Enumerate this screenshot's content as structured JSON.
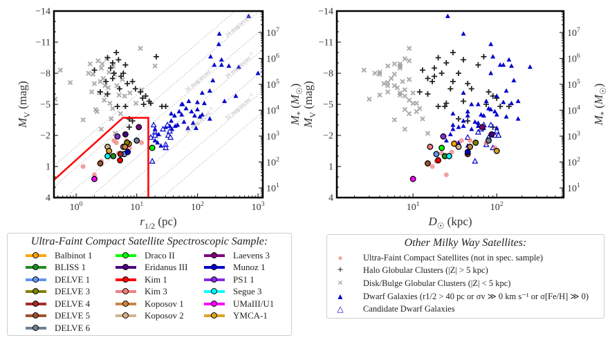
{
  "chart_data": [
    {
      "type": "scatter",
      "panel": "left",
      "xlabel": "r_1/2 (pc)",
      "ylabel": "M_V (mag)",
      "ylabel_right": "M_* (M_sun)",
      "xscale": "log",
      "xlim": [
        0.43,
        1200
      ],
      "ylim": [
        4,
        -14
      ],
      "xticks": [
        "10^0",
        "10^1",
        "10^2",
        "10^3"
      ],
      "yticks": [
        "-14",
        "-11",
        "-8",
        "-5",
        "-2",
        "1",
        "4"
      ],
      "yticks_right": [
        "10^1",
        "10^2",
        "10^3",
        "10^4",
        "10^5",
        "10^6",
        "10^7"
      ],
      "sb_lines": [
        {
          "label": "24 mag/arcsec^-2",
          "offset": 1.1
        },
        {
          "label": "26 mag/arcsec^-2",
          "offset": 3.1
        },
        {
          "label": "28 mag/arcsec^-2",
          "offset": 5.1
        },
        {
          "label": "30 mag/arcsec^-2",
          "offset": 7.1
        },
        {
          "label": "32 mag/arcsec^-2",
          "offset": 9.1
        },
        {
          "label": "",
          "offset": -0.9
        },
        {
          "label": "",
          "offset": 11.1
        }
      ],
      "selection_box": [
        [
          0.43,
          2.3
        ],
        [
          5.9,
          -3.7
        ],
        [
          15.5,
          -3.7
        ],
        [
          15.5,
          4
        ]
      ]
    },
    {
      "type": "scatter",
      "panel": "right",
      "xlabel": "D_sun (kpc)",
      "ylabel": "M_V (mag)",
      "ylabel_right": "M_* (M_sun)",
      "xscale": "log",
      "xlim": [
        1.23,
        630
      ],
      "ylim": [
        4,
        -14
      ],
      "xticks": [
        "10^1",
        "10^2"
      ],
      "yticks": [
        "-14",
        "-11",
        "-8",
        "-5",
        "-2",
        "1",
        "4"
      ],
      "yticks_right": [
        "10^1",
        "10^2",
        "10^3",
        "10^4",
        "10^5",
        "10^6",
        "10^7"
      ]
    }
  ],
  "populations": {
    "fields": [
      "r_half_pc",
      "M_V",
      "D_kpc"
    ],
    "halo_gc": [
      [
        3.3,
        -9.5,
        20
      ],
      [
        4,
        -9,
        25
      ],
      [
        4.6,
        -10,
        30
      ],
      [
        5,
        -9.3,
        40
      ],
      [
        3.7,
        -8.5,
        18
      ],
      [
        4.2,
        -8,
        22
      ],
      [
        6.5,
        -8.8,
        60
      ],
      [
        6,
        -8,
        35
      ],
      [
        7,
        -7,
        45
      ],
      [
        8.5,
        -7.2,
        30
      ],
      [
        9.5,
        -6.5,
        28
      ],
      [
        11.5,
        -6.2,
        80
      ],
      [
        12.5,
        -5.6,
        100
      ],
      [
        14,
        -5.8,
        90
      ],
      [
        16,
        -5.3,
        40
      ],
      [
        17,
        -5.1,
        25
      ],
      [
        21,
        -9.6,
        70
      ],
      [
        26,
        -4.8,
        110
      ],
      [
        30,
        -4.8,
        140
      ],
      [
        3.3,
        -6,
        15
      ],
      [
        4.8,
        -4.8,
        20
      ],
      [
        6.5,
        -4.8,
        24
      ],
      [
        7.5,
        -3.6,
        35
      ],
      [
        8.5,
        -3.4,
        45
      ],
      [
        5.5,
        -7.7,
        18
      ],
      [
        2.5,
        -6.2,
        12
      ],
      [
        7.5,
        -2.8,
        90
      ],
      [
        4,
        -7.5,
        15
      ],
      [
        3.1,
        -7.2,
        17
      ],
      [
        5.2,
        -6.5,
        50
      ],
      [
        13,
        -5,
        75
      ],
      [
        2,
        -8.3,
        13
      ]
    ],
    "disk_gc": [
      [
        0.45,
        -5.5,
        3
      ],
      [
        0.55,
        -8.3,
        2.6
      ],
      [
        0.8,
        -7.1,
        5
      ],
      [
        1.3,
        -3.5,
        6
      ],
      [
        1.7,
        -8.9,
        7
      ],
      [
        1.9,
        -7.9,
        4
      ],
      [
        2.1,
        -4.5,
        8
      ],
      [
        2.3,
        -9.2,
        9
      ],
      [
        2.6,
        -8.5,
        7
      ],
      [
        2.8,
        -7.5,
        5.5
      ],
      [
        3,
        -6.8,
        6
      ],
      [
        3.2,
        -9.4,
        8
      ],
      [
        3.5,
        -8.1,
        4
      ],
      [
        2.4,
        -6.1,
        7
      ],
      [
        2.9,
        -5.4,
        9
      ],
      [
        2.2,
        -4.3,
        11
      ],
      [
        3.6,
        -5.1,
        10
      ],
      [
        4,
        -4.6,
        12
      ],
      [
        4.3,
        -7.9,
        6
      ],
      [
        4.7,
        -6.8,
        5
      ],
      [
        5.1,
        -5.9,
        7
      ],
      [
        5.4,
        -4.1,
        9
      ],
      [
        3.8,
        -3.6,
        13
      ],
      [
        2.6,
        -2.6,
        8
      ],
      [
        4.4,
        -2.2,
        15
      ],
      [
        6.3,
        -5.8,
        8
      ],
      [
        7.7,
        -6.1,
        10
      ],
      [
        9.7,
        -5.1,
        11
      ],
      [
        11.5,
        -10.4,
        9
      ],
      [
        12,
        -6.4,
        8
      ],
      [
        20,
        -8.7,
        7
      ],
      [
        2.0,
        -7.0,
        4.5
      ],
      [
        1.8,
        -6.2,
        5
      ],
      [
        3.4,
        -6.6,
        6.5
      ],
      [
        2.7,
        -8.9,
        6
      ],
      [
        4.1,
        -8.7,
        5
      ],
      [
        5.8,
        -7.4,
        9
      ],
      [
        3.1,
        -5.9,
        4
      ],
      [
        1.6,
        -8.0,
        3.5
      ],
      [
        2.5,
        -7.2,
        7.5
      ]
    ],
    "dwarf": [
      [
        700,
        -13.5,
        26
      ],
      [
        230,
        -11.8,
        40
      ],
      [
        225,
        -10.8,
        85
      ],
      [
        165,
        -9.6,
        90
      ],
      [
        250,
        -9.3,
        140
      ],
      [
        190,
        -8.8,
        110
      ],
      [
        250,
        -8.8,
        120
      ],
      [
        330,
        -8.7,
        150
      ],
      [
        480,
        -8.6,
        250
      ],
      [
        1000,
        -8,
        85
      ],
      [
        180,
        -7.3,
        160
      ],
      [
        120,
        -6.1,
        40
      ],
      [
        160,
        -6.3,
        130
      ],
      [
        280,
        -5.3,
        180
      ],
      [
        430,
        -5.8,
        100
      ],
      [
        55,
        -5,
        50
      ],
      [
        57,
        -5,
        60
      ],
      [
        72,
        -5.3,
        75
      ],
      [
        100,
        -5.2,
        120
      ],
      [
        130,
        -5.1,
        150
      ],
      [
        50,
        -4.3,
        45
      ],
      [
        55,
        -4,
        65
      ],
      [
        65,
        -4.6,
        80
      ],
      [
        80,
        -4.3,
        95
      ],
      [
        90,
        -3.9,
        70
      ],
      [
        100,
        -4.5,
        85
      ],
      [
        110,
        -3.8,
        130
      ],
      [
        120,
        -4.0,
        100
      ],
      [
        160,
        -3.6,
        180
      ],
      [
        37,
        -4.1,
        30
      ],
      [
        42,
        -3.9,
        45
      ],
      [
        47,
        -3.0,
        30
      ],
      [
        60,
        -3.3,
        55
      ],
      [
        70,
        -2.7,
        70
      ],
      [
        85,
        -3.2,
        60
      ],
      [
        95,
        -2.7,
        100
      ],
      [
        35,
        -2.9,
        40
      ],
      [
        38,
        -2.6,
        50
      ],
      [
        23,
        -2.1,
        28
      ],
      [
        30,
        -2.8,
        35
      ],
      [
        20,
        -1.5,
        25
      ],
      [
        22,
        -1.3,
        35
      ],
      [
        25,
        -1.0,
        45
      ],
      [
        20,
        -2.6,
        30
      ],
      [
        37,
        -3.4,
        40
      ],
      [
        43,
        -2.9,
        60
      ]
    ],
    "candidate": [
      [
        19,
        -3.0,
        70
      ],
      [
        17,
        -1.8,
        45
      ],
      [
        20,
        -2.3,
        60
      ],
      [
        27,
        -2.6,
        65
      ],
      [
        32,
        -3.0,
        85
      ],
      [
        35,
        -2.4,
        100
      ],
      [
        33,
        -2.0,
        95
      ],
      [
        36,
        -1.8,
        80
      ],
      [
        30,
        -1.1,
        75
      ],
      [
        30,
        -0.8,
        90
      ],
      [
        18,
        0.5,
        55
      ],
      [
        20,
        -2.0,
        105
      ]
    ],
    "ufcs_other": [
      [
        1.3,
        1.0,
        17
      ],
      [
        2.0,
        1.8,
        25
      ],
      [
        4.2,
        -1.5,
        38
      ],
      [
        4.6,
        -1.3,
        32
      ],
      [
        6.8,
        -1.5,
        48
      ],
      [
        7.6,
        -0.8,
        95
      ],
      [
        12,
        -1.3,
        75
      ],
      [
        2.6,
        0.5,
        19
      ],
      [
        5,
        -0.3,
        22
      ],
      [
        3.4,
        -0.4,
        29
      ]
    ]
  },
  "spectroscopic_sample": [
    {
      "name": "Balbinot 1",
      "color": "#ffa500",
      "r": 7.4,
      "Mv": -1.2,
      "D": 31
    },
    {
      "name": "BLISS 1",
      "color": "#228b22",
      "r": 4.1,
      "Mv": 0.0,
      "D": 24
    },
    {
      "name": "DELVE 1",
      "color": "#6495ed",
      "r": 6.2,
      "Mv": -0.2,
      "D": 19
    },
    {
      "name": "DELVE 3",
      "color": "#808000",
      "r": 6.9,
      "Mv": -1.3,
      "D": 56
    },
    {
      "name": "DELVE 4",
      "color": "#a52a2a",
      "r": 5.4,
      "Mv": -0.2,
      "D": 45
    },
    {
      "name": "DELVE 5",
      "color": "#a0522d",
      "r": 2.5,
      "Mv": 0.7,
      "D": 15
    },
    {
      "name": "DELVE 6",
      "color": "#708090",
      "r": 10.0,
      "Mv": -1.5,
      "D": 80
    },
    {
      "name": "Draco II",
      "color": "#00ff00",
      "r": 18.0,
      "Mv": -0.8,
      "D": 22
    },
    {
      "name": "Eridanus III",
      "color": "#4b0082",
      "r": 6.5,
      "Mv": -2.1,
      "D": 87
    },
    {
      "name": "Kim 1",
      "color": "#ff0000",
      "r": 5.3,
      "Mv": 0.4,
      "D": 20
    },
    {
      "name": "Kim 3",
      "color": "#f08080",
      "r": 6.0,
      "Mv": -0.9,
      "D": 16
    },
    {
      "name": "Koposov 1",
      "color": "#cd853f",
      "r": 6.4,
      "Mv": -0.9,
      "D": 48
    },
    {
      "name": "Koposov 2",
      "color": "#d2b48c",
      "r": 3.3,
      "Mv": -0.9,
      "D": 35
    },
    {
      "name": "Laevens 3",
      "color": "#800080",
      "r": 10.8,
      "Mv": -2.8,
      "D": 67
    },
    {
      "name": "Munoz 1",
      "color": "#0000cd",
      "r": 7.1,
      "Mv": -0.4,
      "D": 45
    },
    {
      "name": "PS1 1",
      "color": "#8a2be2",
      "r": 4.8,
      "Mv": -1.9,
      "D": 23
    },
    {
      "name": "Segue 3",
      "color": "#00ffff",
      "r": 3.3,
      "Mv": 0.0,
      "D": 27
    },
    {
      "name": "UMaIII/U1",
      "color": "#ff00ff",
      "r": 2.0,
      "Mv": 2.2,
      "D": 10
    },
    {
      "name": "YMCA-1",
      "color": "#daa520",
      "r": 3.5,
      "Mv": -0.5,
      "D": 100
    }
  ],
  "legend_left": {
    "title": "Ultra-Faint Compact Satellite Spectroscopic Sample:"
  },
  "legend_right": {
    "title": "Other Milky Way Satellites:",
    "items": [
      {
        "label": "Ultra-Faint Compact Satellites (not in spec. sample)",
        "marker": "circle",
        "color": "#f08080"
      },
      {
        "label": "Halo Globular Clusters (|Z| > 5 kpc)",
        "marker": "plus",
        "color": "#222222"
      },
      {
        "label": "Disk/Bulge Globular Clusters (|Z| < 5 kpc)",
        "marker": "x",
        "color": "#999999"
      },
      {
        "label": "Dwarf Galaxies (r1/2 > 40 pc or σv ≫ 0 km s⁻¹ or σ[Fe/H] ≫ 0)",
        "marker": "triangle-filled",
        "color": "#0000cd"
      },
      {
        "label": "Candidate Dwarf Galaxies",
        "marker": "triangle-open",
        "color": "#0000cd"
      }
    ]
  }
}
